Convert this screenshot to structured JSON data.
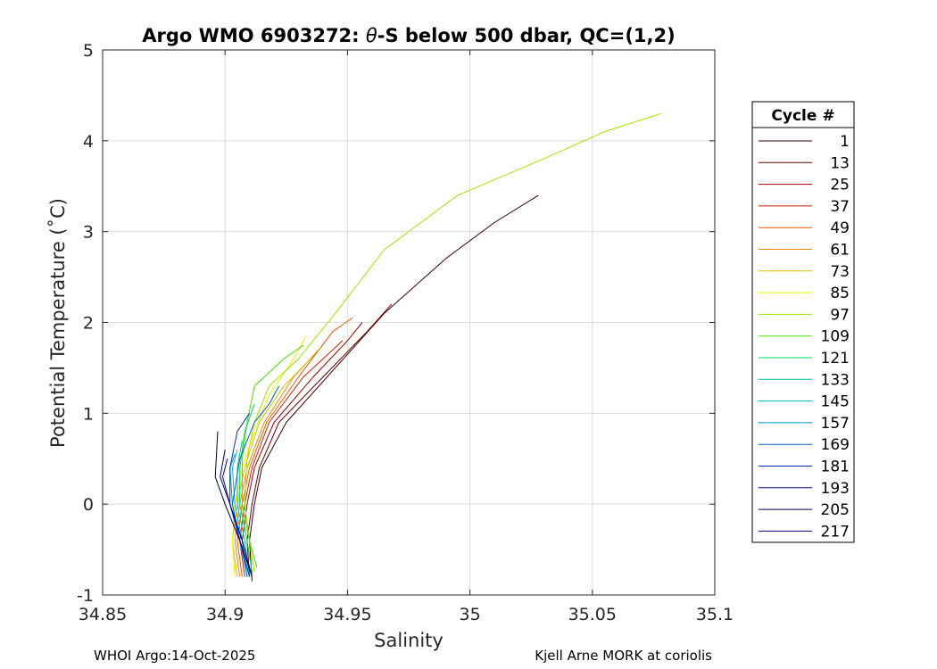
{
  "chart_data": {
    "type": "line",
    "title_main": "Argo WMO 6903272: ",
    "title_theta": "θ",
    "title_rest": "-S below 500 dbar,  QC=(1,2)",
    "xlabel": "Salinity",
    "ylabel": "Potential Temperature (˚C)",
    "xlim": [
      34.85,
      35.1
    ],
    "ylim": [
      -1,
      5
    ],
    "xticks": [
      "34.85",
      "34.9",
      "34.95",
      "35",
      "35.05",
      "35.1"
    ],
    "yticks": [
      "-1",
      "0",
      "1",
      "2",
      "3",
      "4",
      "5"
    ],
    "grid": true,
    "legend_title": "Cycle #",
    "legend_placement": "outside-right",
    "series": [
      {
        "name": "1",
        "color": "#3a0000",
        "points": [
          [
            34.911,
            -0.85
          ],
          [
            34.91,
            -0.4
          ],
          [
            34.912,
            0.0
          ],
          [
            34.915,
            0.4
          ],
          [
            34.925,
            0.9
          ],
          [
            34.945,
            1.5
          ],
          [
            34.965,
            2.1
          ],
          [
            34.99,
            2.7
          ],
          [
            35.01,
            3.1
          ],
          [
            35.028,
            3.4
          ]
        ]
      },
      {
        "name": "13",
        "color": "#6e0000",
        "points": [
          [
            34.91,
            -0.8
          ],
          [
            34.909,
            -0.4
          ],
          [
            34.911,
            0.0
          ],
          [
            34.914,
            0.4
          ],
          [
            34.922,
            0.9
          ],
          [
            34.94,
            1.4
          ],
          [
            34.958,
            1.9
          ],
          [
            34.968,
            2.2
          ]
        ]
      },
      {
        "name": "25",
        "color": "#a00000",
        "points": [
          [
            34.909,
            -0.8
          ],
          [
            34.907,
            -0.4
          ],
          [
            34.909,
            0.0
          ],
          [
            34.912,
            0.4
          ],
          [
            34.92,
            0.9
          ],
          [
            34.936,
            1.4
          ],
          [
            34.95,
            1.8
          ],
          [
            34.956,
            2.0
          ]
        ]
      },
      {
        "name": "37",
        "color": "#d21f00",
        "points": [
          [
            34.908,
            -0.8
          ],
          [
            34.906,
            -0.4
          ],
          [
            34.908,
            0.0
          ],
          [
            34.911,
            0.4
          ],
          [
            34.918,
            0.9
          ],
          [
            34.932,
            1.4
          ],
          [
            34.948,
            1.8
          ]
        ]
      },
      {
        "name": "49",
        "color": "#e85a00",
        "points": [
          [
            34.907,
            -0.8
          ],
          [
            34.905,
            -0.4
          ],
          [
            34.907,
            0.0
          ],
          [
            34.91,
            0.4
          ],
          [
            34.917,
            0.9
          ],
          [
            34.93,
            1.4
          ],
          [
            34.944,
            1.9
          ],
          [
            34.952,
            2.05
          ]
        ]
      },
      {
        "name": "61",
        "color": "#e88a00",
        "points": [
          [
            34.906,
            -0.8
          ],
          [
            34.904,
            -0.4
          ],
          [
            34.906,
            0.0
          ],
          [
            34.909,
            0.4
          ],
          [
            34.916,
            0.9
          ],
          [
            34.928,
            1.4
          ],
          [
            34.94,
            1.75
          ]
        ]
      },
      {
        "name": "73",
        "color": "#e8b800",
        "points": [
          [
            34.905,
            -0.8
          ],
          [
            34.903,
            -0.4
          ],
          [
            34.905,
            0.0
          ],
          [
            34.908,
            0.4
          ],
          [
            34.914,
            0.9
          ],
          [
            34.924,
            1.3
          ],
          [
            34.935,
            1.6
          ]
        ]
      },
      {
        "name": "85",
        "color": "#f0f000",
        "points": [
          [
            34.904,
            -0.8
          ],
          [
            34.903,
            -0.4
          ],
          [
            34.904,
            0.0
          ],
          [
            34.907,
            0.4
          ],
          [
            34.912,
            0.8
          ],
          [
            34.918,
            1.2
          ],
          [
            34.928,
            1.6
          ],
          [
            34.933,
            1.85
          ]
        ]
      },
      {
        "name": "97",
        "color": "#9ee600",
        "points": [
          [
            34.912,
            -0.75
          ],
          [
            34.91,
            -0.4
          ],
          [
            34.908,
            0.0
          ],
          [
            34.909,
            0.5
          ],
          [
            34.912,
            0.9
          ],
          [
            34.918,
            1.3
          ],
          [
            34.93,
            1.6
          ],
          [
            34.945,
            2.1
          ],
          [
            34.965,
            2.8
          ],
          [
            34.995,
            3.4
          ],
          [
            35.03,
            3.8
          ],
          [
            35.055,
            4.1
          ],
          [
            35.078,
            4.3
          ]
        ]
      },
      {
        "name": "109",
        "color": "#44e000",
        "points": [
          [
            34.913,
            -0.7
          ],
          [
            34.91,
            -0.4
          ],
          [
            34.907,
            0.0
          ],
          [
            34.907,
            0.5
          ],
          [
            34.909,
            0.9
          ],
          [
            34.912,
            1.3
          ],
          [
            34.924,
            1.6
          ],
          [
            34.932,
            1.75
          ]
        ]
      },
      {
        "name": "121",
        "color": "#00d94f",
        "points": [
          [
            34.911,
            -0.75
          ],
          [
            34.909,
            -0.4
          ],
          [
            34.906,
            0.0
          ],
          [
            34.906,
            0.4
          ],
          [
            34.908,
            0.8
          ],
          [
            34.912,
            1.1
          ]
        ]
      },
      {
        "name": "133",
        "color": "#00c29a",
        "points": [
          [
            34.91,
            -0.8
          ],
          [
            34.908,
            -0.4
          ],
          [
            34.905,
            0.0
          ],
          [
            34.905,
            0.4
          ],
          [
            34.907,
            0.7
          ]
        ]
      },
      {
        "name": "145",
        "color": "#00b3d6",
        "points": [
          [
            34.909,
            -0.8
          ],
          [
            34.907,
            -0.4
          ],
          [
            34.904,
            0.0
          ],
          [
            34.903,
            0.4
          ],
          [
            34.905,
            0.6
          ]
        ]
      },
      {
        "name": "157",
        "color": "#0094c8",
        "points": [
          [
            34.909,
            -0.8
          ],
          [
            34.906,
            -0.4
          ],
          [
            34.903,
            0.0
          ],
          [
            34.902,
            0.4
          ],
          [
            34.904,
            0.55
          ]
        ]
      },
      {
        "name": "169",
        "color": "#0060c8",
        "points": [
          [
            34.91,
            -0.8
          ],
          [
            34.906,
            -0.4
          ],
          [
            34.903,
            0.0
          ],
          [
            34.906,
            0.5
          ],
          [
            34.912,
            0.9
          ],
          [
            34.918,
            1.1
          ],
          [
            34.922,
            1.3
          ]
        ]
      },
      {
        "name": "181",
        "color": "#0030b4",
        "points": [
          [
            34.91,
            -0.8
          ],
          [
            34.906,
            -0.4
          ],
          [
            34.902,
            0.0
          ],
          [
            34.902,
            0.4
          ],
          [
            34.905,
            0.8
          ],
          [
            34.91,
            1.0
          ]
        ]
      },
      {
        "name": "193",
        "color": "#000f8c",
        "points": [
          [
            34.911,
            -0.8
          ],
          [
            34.907,
            -0.4
          ],
          [
            34.902,
            0.0
          ],
          [
            34.899,
            0.3
          ],
          [
            34.901,
            0.5
          ]
        ]
      },
      {
        "name": "205",
        "color": "#000040",
        "points": [
          [
            34.911,
            -0.8
          ],
          [
            34.906,
            -0.4
          ],
          [
            34.9,
            0.0
          ],
          [
            34.896,
            0.3
          ],
          [
            34.897,
            0.8
          ]
        ]
      },
      {
        "name": "217",
        "color": "#00007a",
        "points": [
          [
            34.911,
            -0.8
          ],
          [
            34.907,
            -0.4
          ],
          [
            34.902,
            0.0
          ],
          [
            34.898,
            0.3
          ],
          [
            34.9,
            0.6
          ]
        ]
      }
    ]
  },
  "footer": {
    "left": "WHOI Argo:14-Oct-2025",
    "right": "Kjell Arne MORK at coriolis"
  }
}
